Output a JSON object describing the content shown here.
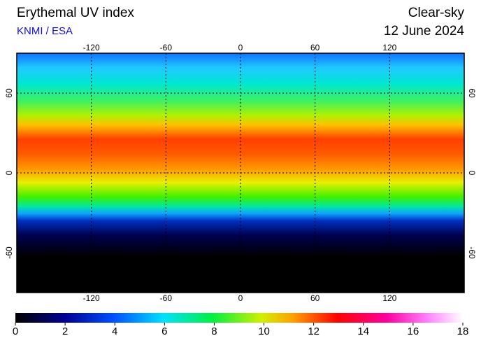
{
  "header": {
    "title": "Erythemal UV index",
    "source": "KNMI / ESA",
    "sky": "Clear-sky",
    "date": "12 June 2024"
  },
  "map": {
    "lon_range": [
      -180,
      180
    ],
    "lat_range": [
      -90,
      90
    ],
    "lon_ticks": [
      -120,
      -60,
      0,
      60,
      120
    ],
    "lat_ticks": [
      60,
      0,
      -60
    ]
  },
  "colorbar": {
    "range": [
      0,
      18
    ],
    "ticks": [
      0,
      2,
      4,
      6,
      8,
      10,
      12,
      14,
      16,
      18
    ]
  }
}
